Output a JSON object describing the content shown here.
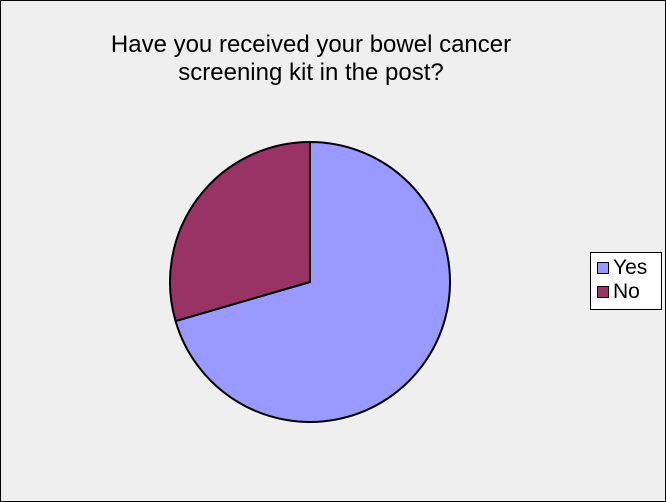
{
  "chart_data": {
    "type": "pie",
    "title": "Have you received your bowel cancer screening kit in the post?",
    "title_lines": [
      "Have you received your bowel cancer",
      "screening kit in the post?"
    ],
    "categories": [
      "Yes",
      "No"
    ],
    "values": [
      70.5,
      29.5
    ],
    "colors": [
      "#9999ff",
      "#993366"
    ],
    "legend": {
      "placement": "right",
      "entries": [
        "Yes",
        "No"
      ]
    }
  },
  "colors": {
    "background": "#efefef",
    "border": "#000000"
  }
}
